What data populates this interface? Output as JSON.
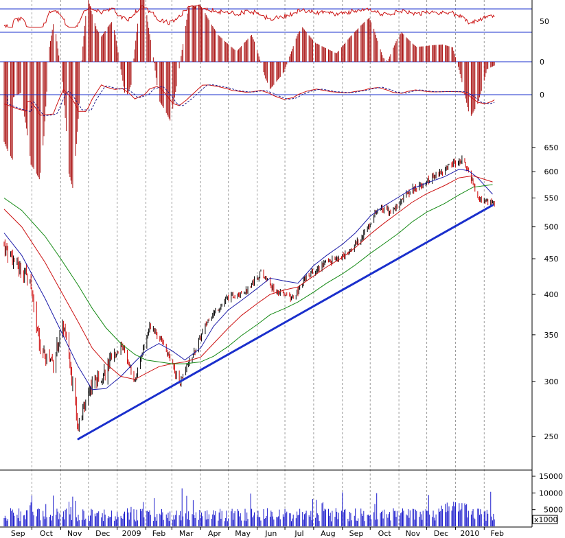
{
  "chart_data": {
    "type": "candlestick",
    "scale": "log",
    "xaxis": {
      "months": [
        "Sep",
        "Oct",
        "Nov",
        "Dec",
        "2009",
        "Feb",
        "Mar",
        "Apr",
        "May",
        "Jun",
        "Jul",
        "Aug",
        "Sep",
        "Oct",
        "Nov",
        "Dec",
        "2010",
        "Feb"
      ]
    },
    "price_panel": {
      "ylim": [
        230,
        680
      ],
      "yticks": [
        250,
        300,
        350,
        400,
        450,
        500,
        550,
        600,
        650
      ],
      "trendline": {
        "from": [
          "2008-11-20",
          248
        ],
        "to": [
          "2010-02-10",
          537
        ],
        "color": "#1a2fcc"
      },
      "moving_averages": [
        {
          "color": "#1a1aa8",
          "points": [
            [
              "2008-09-01",
              490
            ],
            [
              "2008-09-20",
              455
            ],
            [
              "2008-10-15",
              395
            ],
            [
              "2008-11-01",
              355
            ],
            [
              "2008-11-20",
              315
            ],
            [
              "2008-12-05",
              292
            ],
            [
              "2008-12-20",
              293
            ],
            [
              "2009-01-05",
              305
            ],
            [
              "2009-01-20",
              320
            ],
            [
              "2009-02-01",
              332
            ],
            [
              "2009-02-15",
              340
            ],
            [
              "2009-03-01",
              332
            ],
            [
              "2009-03-15",
              322
            ],
            [
              "2009-04-01",
              335
            ],
            [
              "2009-04-15",
              360
            ],
            [
              "2009-05-01",
              380
            ],
            [
              "2009-05-15",
              392
            ],
            [
              "2009-06-01",
              408
            ],
            [
              "2009-06-15",
              422
            ],
            [
              "2009-07-01",
              418
            ],
            [
              "2009-07-15",
              415
            ],
            [
              "2009-08-01",
              440
            ],
            [
              "2009-08-15",
              455
            ],
            [
              "2009-09-01",
              472
            ],
            [
              "2009-09-15",
              490
            ],
            [
              "2009-10-01",
              518
            ],
            [
              "2009-10-15",
              535
            ],
            [
              "2009-11-01",
              552
            ],
            [
              "2009-11-15",
              567
            ],
            [
              "2009-12-01",
              578
            ],
            [
              "2009-12-20",
              590
            ],
            [
              "2010-01-05",
              605
            ],
            [
              "2010-01-15",
              602
            ],
            [
              "2010-01-25",
              588
            ],
            [
              "2010-02-10",
              557
            ]
          ]
        },
        {
          "color": "#cc1111",
          "points": [
            [
              "2008-09-01",
              530
            ],
            [
              "2008-09-20",
              500
            ],
            [
              "2008-10-15",
              445
            ],
            [
              "2008-11-01",
              405
            ],
            [
              "2008-11-20",
              365
            ],
            [
              "2008-12-05",
              335
            ],
            [
              "2008-12-20",
              318
            ],
            [
              "2009-01-05",
              305
            ],
            [
              "2009-01-20",
              302
            ],
            [
              "2009-02-01",
              308
            ],
            [
              "2009-02-15",
              315
            ],
            [
              "2009-03-01",
              318
            ],
            [
              "2009-03-15",
              320
            ],
            [
              "2009-04-01",
              325
            ],
            [
              "2009-04-15",
              340
            ],
            [
              "2009-05-01",
              358
            ],
            [
              "2009-05-15",
              373
            ],
            [
              "2009-06-01",
              388
            ],
            [
              "2009-06-15",
              400
            ],
            [
              "2009-07-01",
              406
            ],
            [
              "2009-07-15",
              410
            ],
            [
              "2009-08-01",
              425
            ],
            [
              "2009-08-15",
              438
            ],
            [
              "2009-09-01",
              452
            ],
            [
              "2009-09-15",
              467
            ],
            [
              "2009-10-01",
              488
            ],
            [
              "2009-10-15",
              505
            ],
            [
              "2009-11-01",
              525
            ],
            [
              "2009-11-15",
              542
            ],
            [
              "2009-12-01",
              558
            ],
            [
              "2009-12-20",
              573
            ],
            [
              "2010-01-05",
              588
            ],
            [
              "2010-01-20",
              592
            ],
            [
              "2010-02-10",
              580
            ]
          ]
        },
        {
          "color": "#118811",
          "points": [
            [
              "2008-09-01",
              550
            ],
            [
              "2008-09-20",
              528
            ],
            [
              "2008-10-15",
              485
            ],
            [
              "2008-11-01",
              450
            ],
            [
              "2008-11-20",
              412
            ],
            [
              "2008-12-05",
              382
            ],
            [
              "2008-12-20",
              358
            ],
            [
              "2009-01-05",
              340
            ],
            [
              "2009-01-20",
              328
            ],
            [
              "2009-02-01",
              322
            ],
            [
              "2009-02-15",
              320
            ],
            [
              "2009-03-01",
              318
            ],
            [
              "2009-03-15",
              318
            ],
            [
              "2009-04-01",
              320
            ],
            [
              "2009-04-15",
              326
            ],
            [
              "2009-05-01",
              337
            ],
            [
              "2009-05-15",
              349
            ],
            [
              "2009-06-01",
              362
            ],
            [
              "2009-06-15",
              374
            ],
            [
              "2009-07-01",
              382
            ],
            [
              "2009-07-15",
              390
            ],
            [
              "2009-08-01",
              403
            ],
            [
              "2009-08-15",
              415
            ],
            [
              "2009-09-01",
              428
            ],
            [
              "2009-09-15",
              441
            ],
            [
              "2009-10-01",
              458
            ],
            [
              "2009-10-15",
              472
            ],
            [
              "2009-11-01",
              490
            ],
            [
              "2009-11-15",
              508
            ],
            [
              "2009-12-01",
              525
            ],
            [
              "2009-12-20",
              540
            ],
            [
              "2010-01-05",
              556
            ],
            [
              "2010-01-20",
              570
            ],
            [
              "2010-02-10",
              575
            ]
          ]
        }
      ]
    },
    "rsi_panel": {
      "labels": [
        "50"
      ],
      "levels": [
        70,
        30
      ]
    },
    "histogram_panel": {
      "labels": [
        "0"
      ]
    },
    "macd_panel": {
      "labels": [
        "0"
      ]
    },
    "volume_panel": {
      "yticks": [
        5000,
        10000,
        15000
      ],
      "unit": "x1000"
    }
  }
}
